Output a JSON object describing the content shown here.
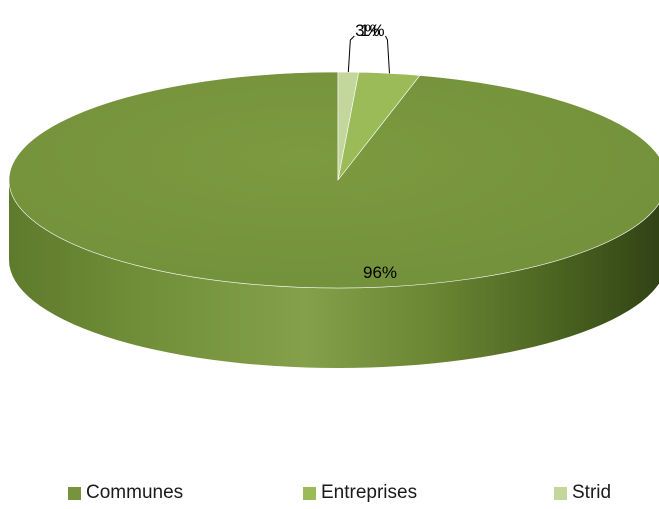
{
  "chart_data": {
    "type": "pie",
    "style": "3d",
    "title": "",
    "categories": [
      "Communes",
      "Entreprises",
      "Strid"
    ],
    "values": [
      96,
      3,
      1
    ],
    "labels": [
      "96%",
      "3%",
      "1%"
    ],
    "colors": [
      "#77933C",
      "#9BBB59",
      "#C3D69B"
    ],
    "legend_position": "bottom"
  }
}
